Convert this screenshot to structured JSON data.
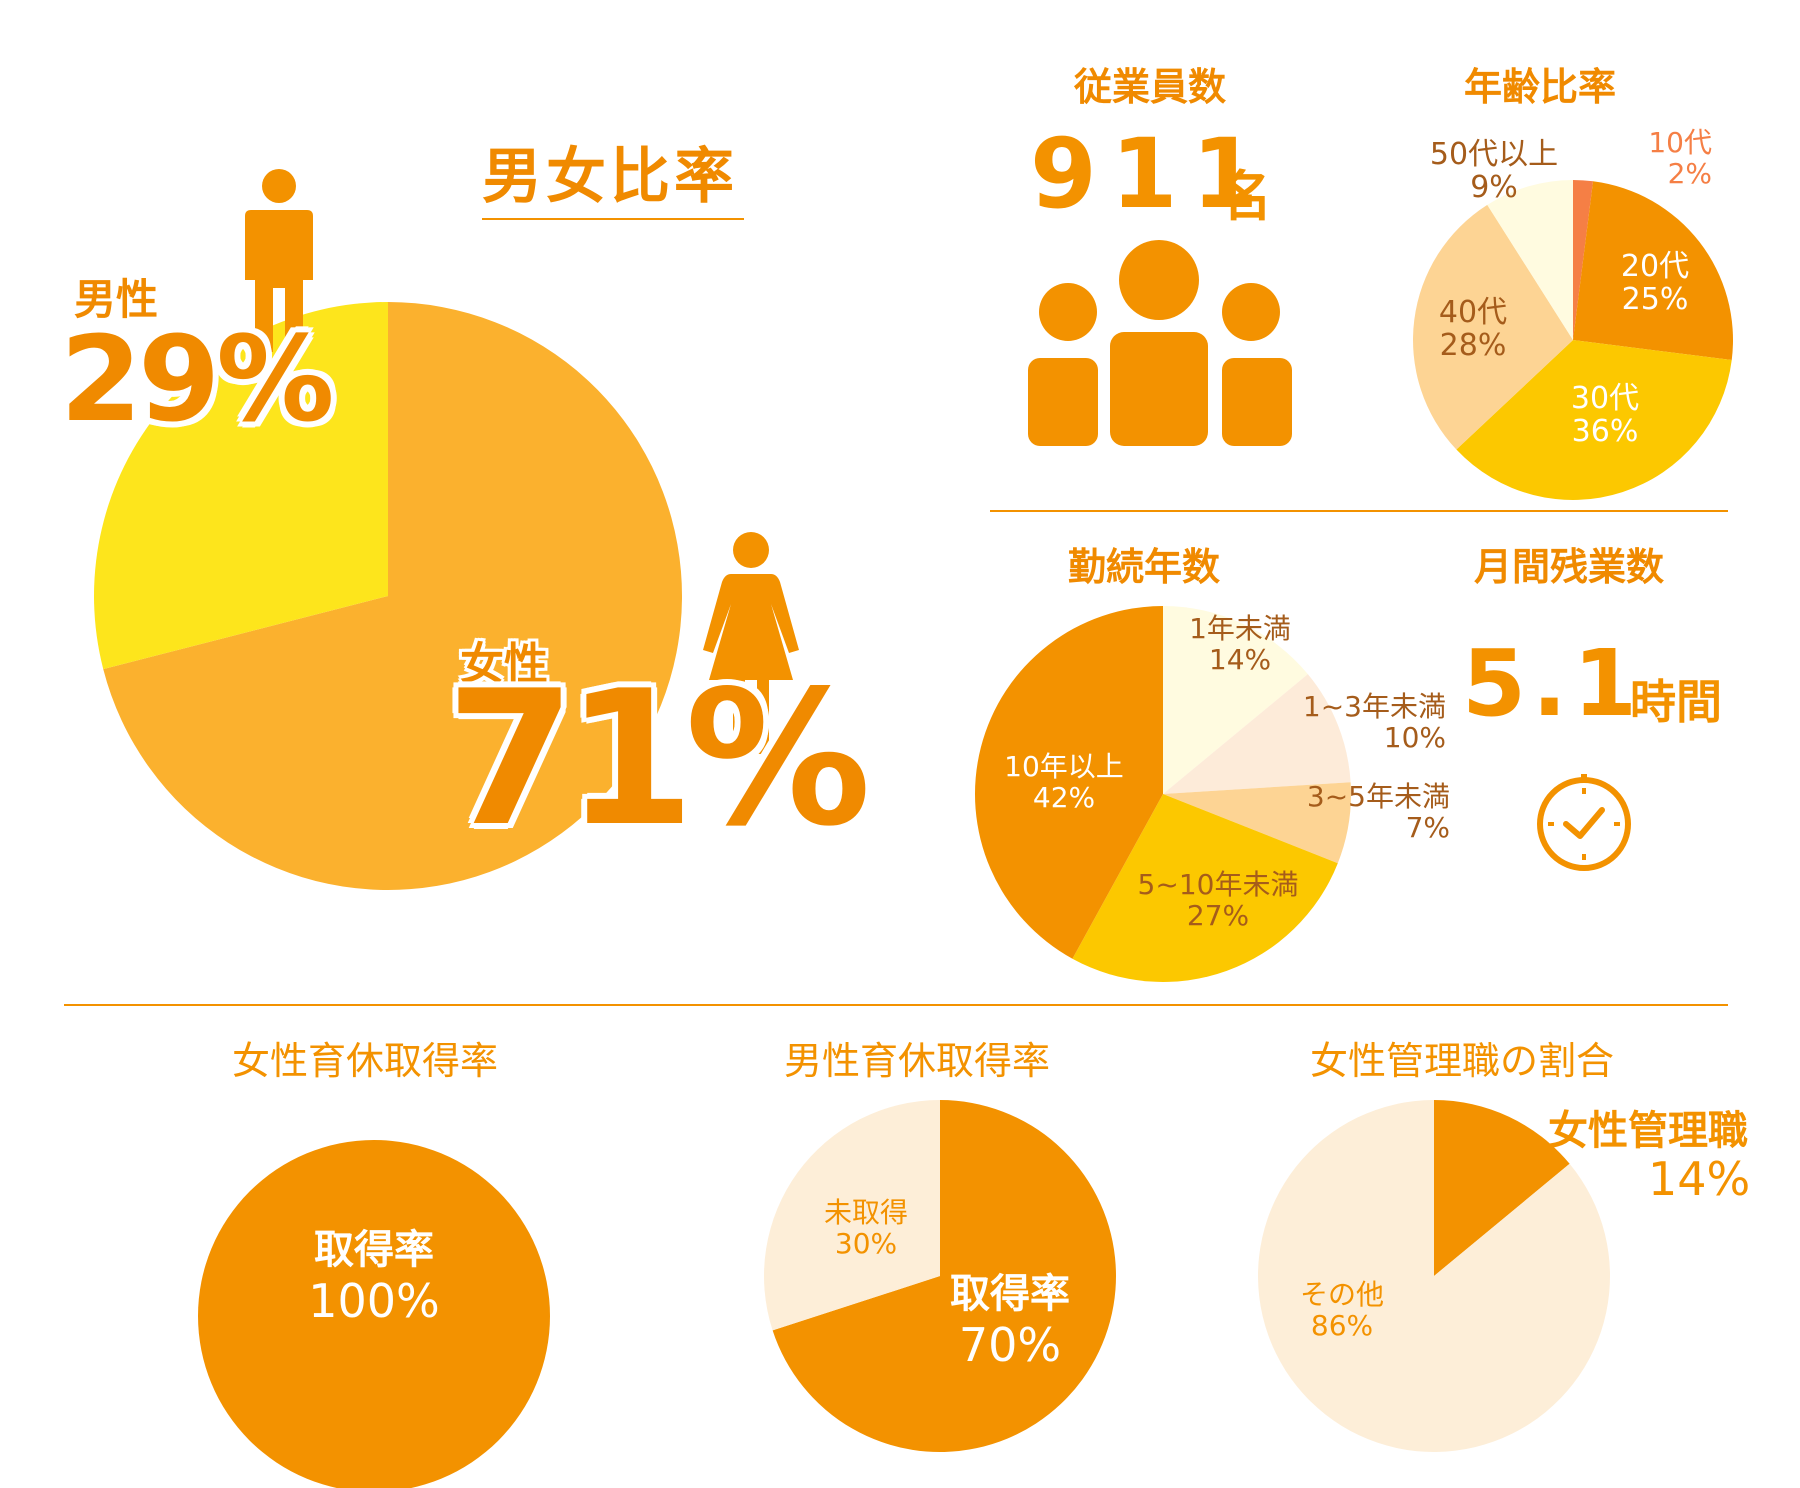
{
  "colors": {
    "accent": "#f39200",
    "female": "#fbb12e",
    "male": "#fde51c",
    "age_10s": "#f57f45",
    "age_20s": "#f39200",
    "age_30s": "#fcc800",
    "age_40s": "#fdd494",
    "age_50s": "#fffbe0",
    "tenure_lt1": "#fffbe0",
    "tenure_1_3": "#fdebd9",
    "tenure_3_5": "#fdd494",
    "tenure_5_10": "#fcc800",
    "tenure_10plus": "#f39200",
    "pale": "#fdeed8"
  },
  "gender": {
    "title": "男女比率",
    "male_label": "男性",
    "male_value": "29%",
    "female_label": "女性",
    "female_value": "71%",
    "male_icon": "male-person-icon",
    "female_icon": "female-person-icon"
  },
  "employees": {
    "title": "従業員数",
    "number": "911",
    "unit": "名",
    "icon": "people-group-icon"
  },
  "age": {
    "title": "年齢比率",
    "labels": [
      {
        "name": "10代",
        "value": "2%"
      },
      {
        "name": "20代",
        "value": "25%"
      },
      {
        "name": "30代",
        "value": "36%"
      },
      {
        "name": "40代",
        "value": "28%"
      },
      {
        "name": "50代以上",
        "value": "9%"
      }
    ]
  },
  "tenure": {
    "title": "勤続年数",
    "labels": [
      {
        "name": "1年未満",
        "value": "14%"
      },
      {
        "name": "1~3年未満",
        "value": "10%"
      },
      {
        "name": "3~5年未満",
        "value": "7%"
      },
      {
        "name": "5~10年未満",
        "value": "27%"
      },
      {
        "name": "10年以上",
        "value": "42%"
      }
    ]
  },
  "overtime": {
    "title": "月間残業数",
    "number": "5.1",
    "unit": "時間",
    "icon": "clock-icon"
  },
  "female_leave": {
    "title": "女性育休取得率",
    "label": "取得率",
    "value": "100%"
  },
  "male_leave": {
    "title": "男性育休取得率",
    "taken_label": "取得率",
    "taken_value": "70%",
    "not_taken_label": "未取得",
    "not_taken_value": "30%"
  },
  "female_mgmt": {
    "title": "女性管理職の割合",
    "mgmt_label": "女性管理職",
    "mgmt_value": "14%",
    "other_label": "その他",
    "other_value": "86%"
  },
  "chart_data": [
    {
      "type": "pie",
      "title": "男女比率",
      "categories": [
        "男性",
        "女性"
      ],
      "values": [
        29,
        71
      ],
      "colors": [
        "#fde51c",
        "#fbb12e"
      ]
    },
    {
      "type": "pie",
      "title": "年齢比率",
      "categories": [
        "10代",
        "20代",
        "30代",
        "40代",
        "50代以上"
      ],
      "values": [
        2,
        25,
        36,
        28,
        9
      ],
      "colors": [
        "#f57f45",
        "#f39200",
        "#fcc800",
        "#fdd494",
        "#fffbe0"
      ]
    },
    {
      "type": "pie",
      "title": "勤続年数",
      "categories": [
        "1年未満",
        "1~3年未満",
        "3~5年未満",
        "5~10年未満",
        "10年以上"
      ],
      "values": [
        14,
        10,
        7,
        27,
        42
      ],
      "colors": [
        "#fffbe0",
        "#fdebd9",
        "#fdd494",
        "#fcc800",
        "#f39200"
      ]
    },
    {
      "type": "pie",
      "title": "女性育休取得率",
      "categories": [
        "取得率"
      ],
      "values": [
        100
      ],
      "colors": [
        "#f39200"
      ]
    },
    {
      "type": "pie",
      "title": "男性育休取得率",
      "categories": [
        "取得率",
        "未取得"
      ],
      "values": [
        70,
        30
      ],
      "colors": [
        "#f39200",
        "#fdeed8"
      ]
    },
    {
      "type": "pie",
      "title": "女性管理職の割合",
      "categories": [
        "女性管理職",
        "その他"
      ],
      "values": [
        14,
        86
      ],
      "colors": [
        "#f39200",
        "#fdeed8"
      ]
    }
  ]
}
